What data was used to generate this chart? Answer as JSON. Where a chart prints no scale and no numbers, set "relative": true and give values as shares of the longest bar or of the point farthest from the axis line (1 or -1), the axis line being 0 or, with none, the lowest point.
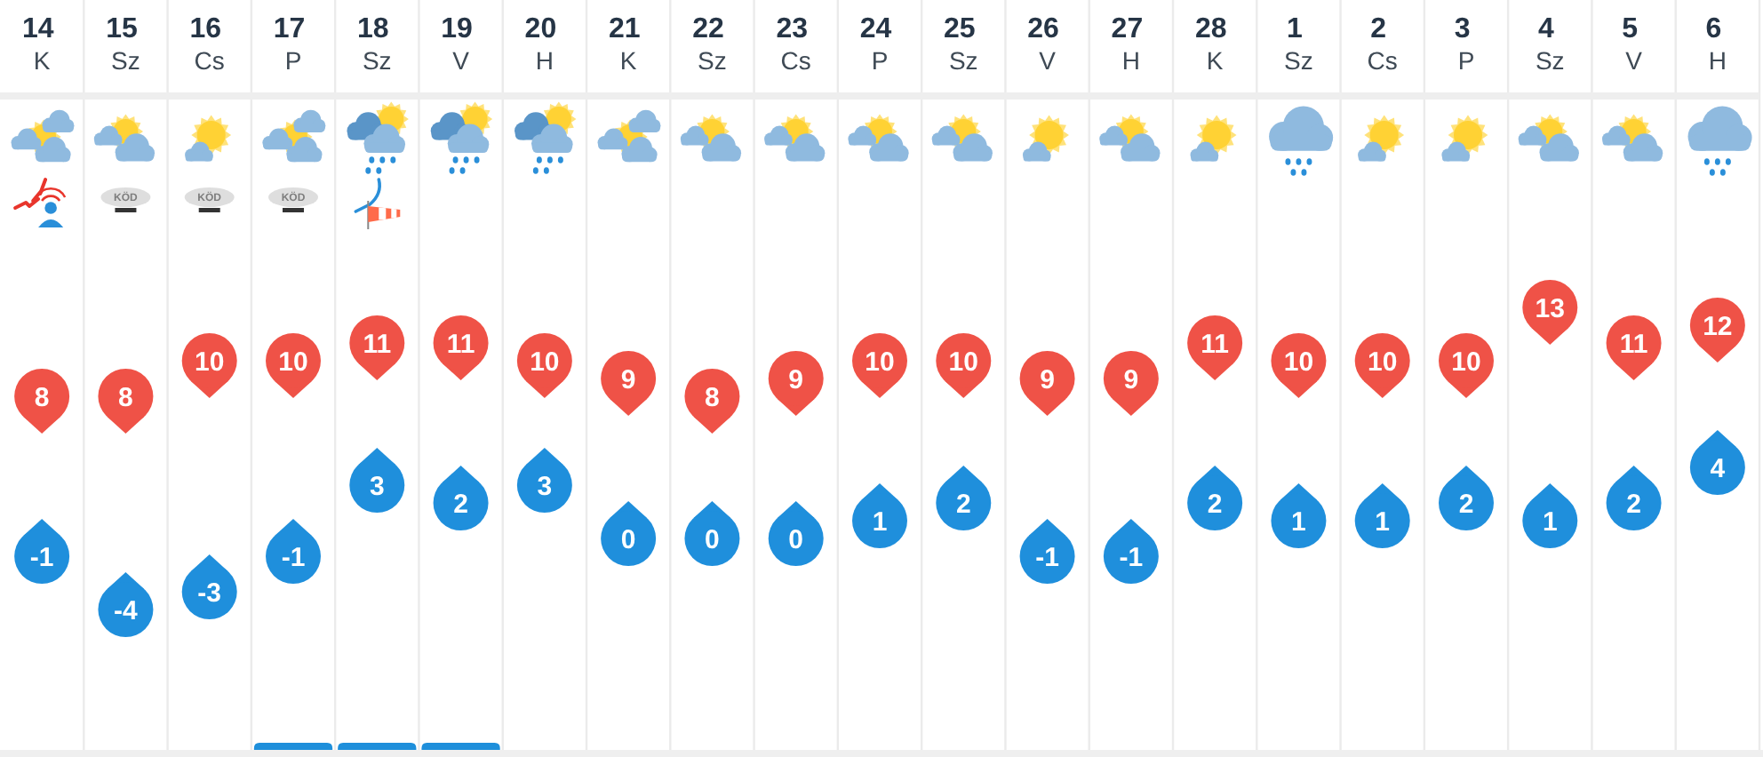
{
  "chart_data": [
    {
      "type": "scatter",
      "categories": [
        "14 K",
        "15 Sz",
        "16 Cs",
        "17 P",
        "18 Sz",
        "19 V",
        "20 H",
        "21 K",
        "22 Sz",
        "23 Cs",
        "24 P",
        "25 Sz",
        "26 V",
        "27 H",
        "28 K",
        "1 Sz",
        "2 Cs",
        "3 P",
        "4 Sz",
        "5 V",
        "6 H"
      ],
      "series": [
        {
          "color": "#ef5247",
          "values": [
            8,
            8,
            10,
            10,
            11,
            11,
            10,
            9,
            8,
            9,
            10,
            10,
            9,
            9,
            11,
            10,
            10,
            10,
            13,
            11,
            12
          ]
        },
        {
          "color": "#1f8fdc",
          "values": [
            -1,
            -4,
            -3,
            -1,
            3,
            2,
            3,
            0,
            0,
            0,
            1,
            2,
            -1,
            -1,
            2,
            1,
            1,
            2,
            1,
            2,
            4
          ]
        }
      ],
      "tick_labels": "x",
      "grid": "x",
      "data_labels": true,
      "marker": "circle",
      "annotations": [
        "KÖD",
        "KÖD",
        "KÖD"
      ]
    },
    {
      "type": "bar",
      "categories": [
        null,
        null,
        null,
        null,
        null,
        null,
        null,
        null,
        null,
        null,
        null,
        null,
        null,
        null,
        null,
        null,
        null,
        null,
        null,
        null,
        null
      ],
      "values": [
        0,
        0,
        0,
        1,
        1,
        1,
        0,
        0,
        0,
        0,
        0,
        0,
        0,
        0,
        0,
        0,
        0,
        0,
        0,
        0,
        0
      ],
      "color": "#1e8fdb",
      "relative": true,
      "tick_labels": false
    }
  ]
}
